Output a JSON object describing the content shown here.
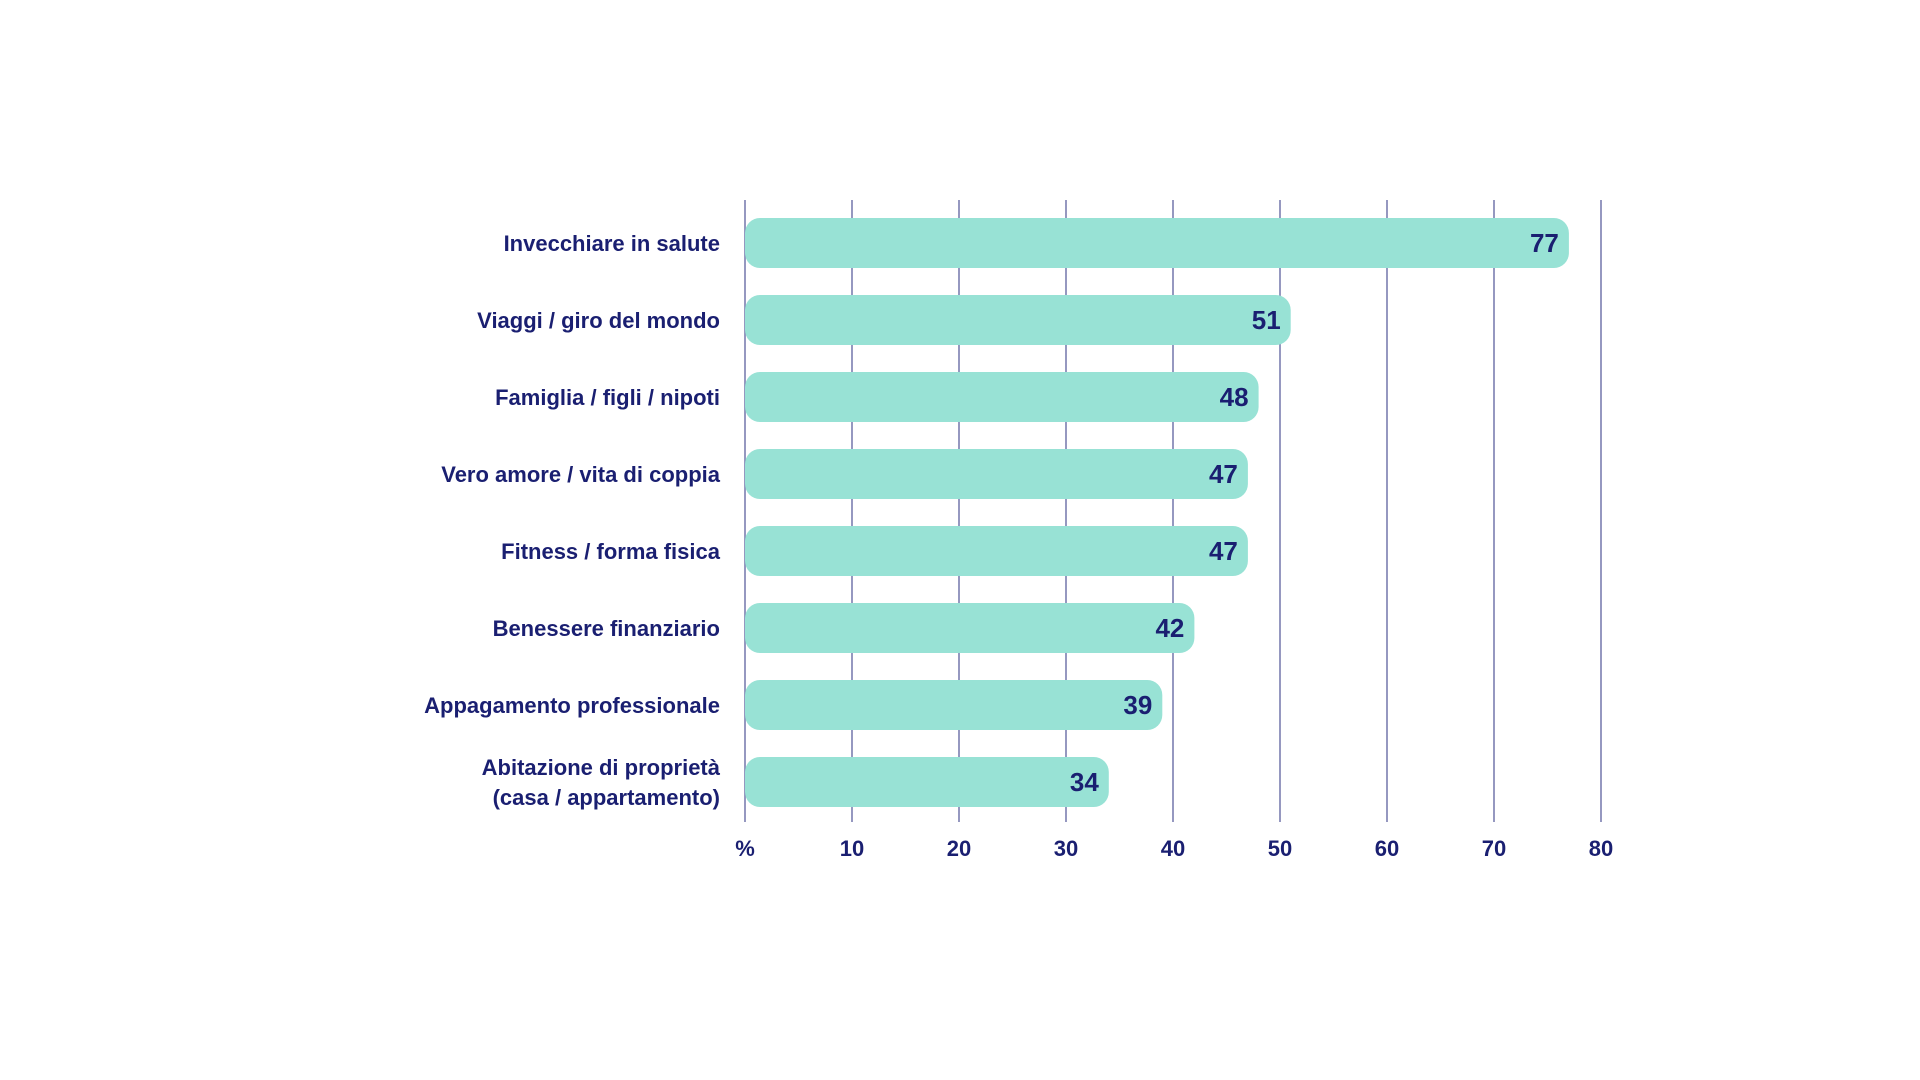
{
  "chart_data": {
    "type": "bar",
    "orientation": "horizontal",
    "title": "",
    "xlabel": "",
    "ylabel": "",
    "xlim": [
      0,
      80
    ],
    "grid": true,
    "legend": "none",
    "x_ticks": [
      "%",
      "10",
      "20",
      "30",
      "40",
      "50",
      "60",
      "70",
      "80"
    ],
    "tick_values": [
      0,
      10,
      20,
      30,
      40,
      50,
      60,
      70,
      80
    ],
    "categories": [
      [
        "Invecchiare in salute"
      ],
      [
        "Viaggi / giro del mondo"
      ],
      [
        "Famiglia / figli / nipoti"
      ],
      [
        "Vero amore / vita di coppia"
      ],
      [
        "Fitness / forma fisica"
      ],
      [
        "Benessere finanziario"
      ],
      [
        "Appagamento professionale"
      ],
      [
        "Abitazione di proprietà",
        "(casa / appartamento)"
      ]
    ],
    "values": [
      77,
      51,
      48,
      47,
      47,
      42,
      39,
      34
    ],
    "colors": {
      "bar": "#98e2d5",
      "grid": "#7b7fb0",
      "text": "#1a1f71"
    }
  }
}
